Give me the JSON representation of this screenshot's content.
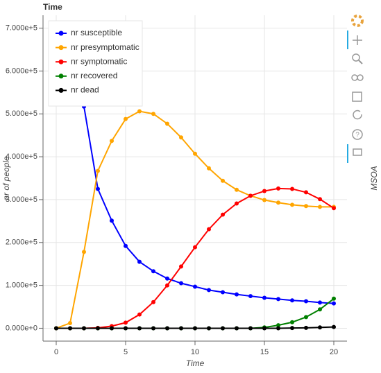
{
  "chart_data": {
    "type": "line",
    "title": "Time",
    "x_label": "Time",
    "y_label": "nr of people",
    "right_label": "MSOA",
    "x": [
      0,
      1,
      2,
      3,
      4,
      5,
      6,
      7,
      8,
      9,
      10,
      11,
      12,
      13,
      14,
      15,
      16,
      17,
      18,
      19,
      20
    ],
    "series": [
      {
        "name": "nr susceptible",
        "color": "#0000ff",
        "values": [
          692000,
          680000,
          517000,
          325000,
          251000,
          192000,
          155000,
          133000,
          116000,
          105000,
          97000,
          89000,
          84000,
          79000,
          75000,
          71000,
          68000,
          65000,
          63000,
          60000,
          58000
        ]
      },
      {
        "name": "nr presymptomatic",
        "color": "#ffa500",
        "values": [
          0,
          12000,
          178000,
          367000,
          437000,
          488000,
          506000,
          500000,
          477000,
          445000,
          407000,
          373000,
          344000,
          323000,
          309000,
          299000,
          293000,
          288000,
          285000,
          283000,
          283000
        ]
      },
      {
        "name": "nr symptomatic",
        "color": "#ff0000",
        "values": [
          0,
          0,
          0,
          1000,
          5000,
          13000,
          32000,
          61000,
          100000,
          144000,
          189000,
          231000,
          265000,
          291000,
          309000,
          320000,
          326000,
          325000,
          317000,
          301000,
          280000
        ]
      },
      {
        "name": "nr recovered",
        "color": "#008000",
        "values": [
          0,
          0,
          0,
          0,
          0,
          0,
          0,
          0,
          0,
          0,
          0,
          0,
          0,
          0,
          0,
          2000,
          7000,
          14000,
          26000,
          44000,
          69000
        ]
      },
      {
        "name": "nr dead",
        "color": "#000000",
        "values": [
          0,
          0,
          0,
          0,
          0,
          0,
          0,
          0,
          0,
          0,
          0,
          0,
          0,
          0,
          0,
          0,
          0,
          500,
          1000,
          2000,
          3000
        ]
      }
    ],
    "xlim": [
      -0.95,
      20.95
    ],
    "ylim": [
      -30000,
      730000
    ],
    "xticks": [
      0,
      5,
      10,
      15,
      20
    ],
    "yticks": [
      {
        "value": 0,
        "label": "0.000e+0"
      },
      {
        "value": 100000,
        "label": "1.000e+5"
      },
      {
        "value": 200000,
        "label": "2.000e+5"
      },
      {
        "value": 300000,
        "label": "3.000e+5"
      },
      {
        "value": 400000,
        "label": "4.000e+5"
      },
      {
        "value": 500000,
        "label": "5.000e+5"
      },
      {
        "value": 600000,
        "label": "6.000e+5"
      },
      {
        "value": 700000,
        "label": "7.000e+5"
      }
    ],
    "grid": true,
    "legend": "top_left"
  }
}
